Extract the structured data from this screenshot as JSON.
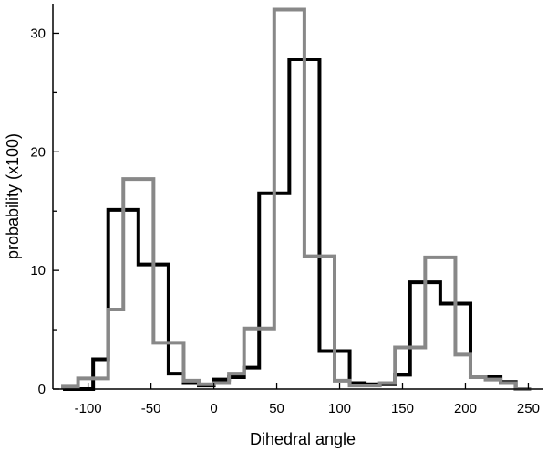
{
  "chart_data": {
    "type": "histogram-step",
    "title": "",
    "xlabel": "Dihedral angle",
    "ylabel": "probability (x100)",
    "xlim": [
      -128,
      262
    ],
    "ylim": [
      0,
      32.5
    ],
    "x_ticks": [
      -100,
      -50,
      0,
      50,
      100,
      150,
      200,
      250
    ],
    "y_ticks": [
      0,
      10,
      20,
      30
    ],
    "bin_width": 12,
    "series": [
      {
        "name": "black series",
        "color": "#000000",
        "bins": [
          {
            "x0": -120,
            "x1": -108,
            "value": 0.0
          },
          {
            "x0": -108,
            "x1": -96,
            "value": 0.0
          },
          {
            "x0": -96,
            "x1": -84,
            "value": 2.5
          },
          {
            "x0": -84,
            "x1": -72,
            "value": 15.1
          },
          {
            "x0": -72,
            "x1": -60,
            "value": 15.1
          },
          {
            "x0": -60,
            "x1": -48,
            "value": 10.5
          },
          {
            "x0": -48,
            "x1": -36,
            "value": 10.5
          },
          {
            "x0": -36,
            "x1": -24,
            "value": 1.3
          },
          {
            "x0": -24,
            "x1": -12,
            "value": 0.5
          },
          {
            "x0": -12,
            "x1": 0,
            "value": 0.3
          },
          {
            "x0": 0,
            "x1": 12,
            "value": 0.8
          },
          {
            "x0": 12,
            "x1": 24,
            "value": 1.0
          },
          {
            "x0": 24,
            "x1": 36,
            "value": 1.8
          },
          {
            "x0": 36,
            "x1": 48,
            "value": 16.5
          },
          {
            "x0": 48,
            "x1": 60,
            "value": 16.5
          },
          {
            "x0": 60,
            "x1": 72,
            "value": 27.8
          },
          {
            "x0": 72,
            "x1": 84,
            "value": 27.8
          },
          {
            "x0": 84,
            "x1": 96,
            "value": 3.2
          },
          {
            "x0": 96,
            "x1": 108,
            "value": 3.2
          },
          {
            "x0": 108,
            "x1": 120,
            "value": 0.5
          },
          {
            "x0": 120,
            "x1": 132,
            "value": 0.4
          },
          {
            "x0": 132,
            "x1": 144,
            "value": 0.4
          },
          {
            "x0": 144,
            "x1": 156,
            "value": 1.2
          },
          {
            "x0": 156,
            "x1": 168,
            "value": 9.0
          },
          {
            "x0": 168,
            "x1": 180,
            "value": 9.0
          },
          {
            "x0": 180,
            "x1": 192,
            "value": 7.2
          },
          {
            "x0": 192,
            "x1": 204,
            "value": 7.2
          },
          {
            "x0": 204,
            "x1": 216,
            "value": 1.0
          },
          {
            "x0": 216,
            "x1": 228,
            "value": 1.0
          },
          {
            "x0": 228,
            "x1": 240,
            "value": 0.6
          },
          {
            "x0": 240,
            "x1": 252,
            "value": 0.0
          }
        ]
      },
      {
        "name": "gray series",
        "color": "#888888",
        "bins": [
          {
            "x0": -120,
            "x1": -108,
            "value": 0.2
          },
          {
            "x0": -108,
            "x1": -96,
            "value": 0.9
          },
          {
            "x0": -96,
            "x1": -84,
            "value": 0.9
          },
          {
            "x0": -84,
            "x1": -72,
            "value": 6.7
          },
          {
            "x0": -72,
            "x1": -60,
            "value": 17.7
          },
          {
            "x0": -60,
            "x1": -48,
            "value": 17.7
          },
          {
            "x0": -48,
            "x1": -36,
            "value": 3.9
          },
          {
            "x0": -36,
            "x1": -24,
            "value": 3.9
          },
          {
            "x0": -24,
            "x1": -12,
            "value": 0.7
          },
          {
            "x0": -12,
            "x1": 0,
            "value": 0.4
          },
          {
            "x0": 0,
            "x1": 12,
            "value": 0.5
          },
          {
            "x0": 12,
            "x1": 24,
            "value": 1.3
          },
          {
            "x0": 24,
            "x1": 36,
            "value": 5.1
          },
          {
            "x0": 36,
            "x1": 48,
            "value": 5.1
          },
          {
            "x0": 48,
            "x1": 60,
            "value": 32.0
          },
          {
            "x0": 60,
            "x1": 72,
            "value": 32.0
          },
          {
            "x0": 72,
            "x1": 84,
            "value": 11.2
          },
          {
            "x0": 84,
            "x1": 96,
            "value": 11.2
          },
          {
            "x0": 96,
            "x1": 108,
            "value": 0.7
          },
          {
            "x0": 108,
            "x1": 120,
            "value": 0.3
          },
          {
            "x0": 120,
            "x1": 132,
            "value": 0.3
          },
          {
            "x0": 132,
            "x1": 144,
            "value": 0.5
          },
          {
            "x0": 144,
            "x1": 156,
            "value": 3.5
          },
          {
            "x0": 156,
            "x1": 168,
            "value": 3.5
          },
          {
            "x0": 168,
            "x1": 180,
            "value": 11.1
          },
          {
            "x0": 180,
            "x1": 192,
            "value": 11.1
          },
          {
            "x0": 192,
            "x1": 204,
            "value": 2.9
          },
          {
            "x0": 204,
            "x1": 216,
            "value": 1.0
          },
          {
            "x0": 216,
            "x1": 228,
            "value": 0.8
          },
          {
            "x0": 228,
            "x1": 240,
            "value": 0.5
          },
          {
            "x0": 240,
            "x1": 252,
            "value": 0.0
          }
        ]
      }
    ]
  }
}
